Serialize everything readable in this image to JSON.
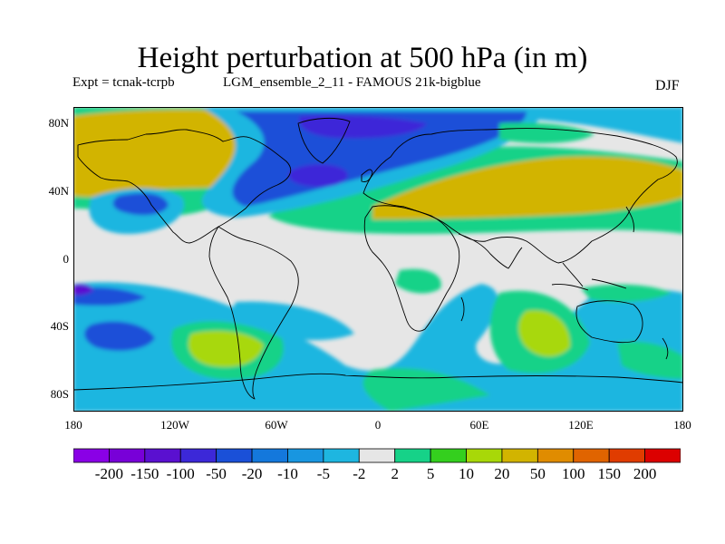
{
  "title": "Height perturbation at 500 hPa (in m)",
  "subtitle_left": "Expt = tcnak-tcrpb",
  "subtitle_center": "LGM_ensemble_2_11 - FAMOUS 21k-bigblue",
  "season": "DJF",
  "y_ticks": [
    "80N",
    "40N",
    "0",
    "40S",
    "80S"
  ],
  "x_ticks": [
    "180",
    "120W",
    "60W",
    "0",
    "60E",
    "120E",
    "180"
  ],
  "colorbar": {
    "colors": [
      "#8a00e6",
      "#7800d8",
      "#5a10d0",
      "#3c28d8",
      "#1a50d8",
      "#1478dc",
      "#1896e0",
      "#1eb6e0",
      "#e6e6e6",
      "#16d288",
      "#34cf1e",
      "#a8d808",
      "#d2b400",
      "#e08c00",
      "#e06400",
      "#e03c00",
      "#dc0000"
    ],
    "labels": [
      "-200",
      "-150",
      "-100",
      "-50",
      "-20",
      "-10",
      "-5",
      "-2",
      "2",
      "5",
      "10",
      "20",
      "50",
      "100",
      "150",
      "200"
    ]
  },
  "colors": {
    "neutral": "#e6e6e6",
    "cyan": "#1eb6e0",
    "blue": "#1a50d8",
    "deep_blue": "#3c28d8",
    "purple": "#5a10d0",
    "green": "#16d288",
    "green2": "#34cf1e",
    "yellow_green": "#a8d808",
    "olive": "#d2b400",
    "coast": "#000000"
  }
}
